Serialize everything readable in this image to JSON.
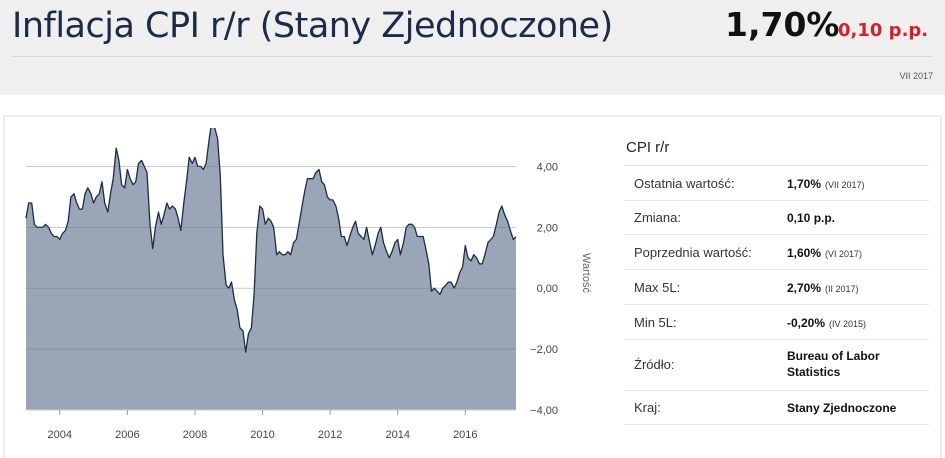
{
  "header": {
    "title": "Inflacja CPI r/r (Stany Zjednoczone)",
    "value": "1,70%",
    "change": "0,10 p.p.",
    "period": "VII 2017",
    "change_color": "#d61f2c",
    "title_color": "#1c2b47"
  },
  "sidebar": {
    "title": "CPI r/r",
    "rows": [
      {
        "label": "Ostatnia wartość:",
        "value": "1,70%",
        "note": "(VII 2017)"
      },
      {
        "label": "Zmiana:",
        "value": "0,10 p.p.",
        "note": ""
      },
      {
        "label": "Poprzednia wartość:",
        "value": "1,60%",
        "note": "(VI 2017)"
      },
      {
        "label": "Max 5L:",
        "value": "2,70%",
        "note": "(II 2017)"
      },
      {
        "label": "Min 5L:",
        "value": "-0,20%",
        "note": "(IV 2015)"
      },
      {
        "label": "Źródło:",
        "value": "Bureau of Labor Statistics",
        "note": ""
      },
      {
        "label": "Kraj:",
        "value": "Stany Zjednoczone",
        "note": ""
      }
    ]
  },
  "chart_data": {
    "type": "area",
    "ylabel": "Wartość",
    "ylim": [
      -4,
      5
    ],
    "xlim": [
      2003.0,
      2017.5
    ],
    "y_ticks": [
      4,
      2,
      0,
      -2,
      -4
    ],
    "y_tick_labels": [
      "4,00",
      "2,00",
      "0,00",
      "−2,00",
      "−4,00"
    ],
    "x_ticks": [
      2004,
      2006,
      2008,
      2010,
      2012,
      2014,
      2016
    ],
    "x_tick_labels": [
      "2004",
      "2006",
      "2008",
      "2010",
      "2012",
      "2014",
      "2016"
    ],
    "grid": true,
    "fill_color": "#9aa6b7",
    "line_color": "#1c2b47",
    "series": [
      {
        "x": [
          2003.0,
          2003.08,
          2003.17,
          2003.25,
          2003.33,
          2003.42,
          2003.5,
          2003.58,
          2003.67,
          2003.75,
          2003.83,
          2003.92,
          2004.0,
          2004.08,
          2004.17,
          2004.25,
          2004.33,
          2004.42,
          2004.5,
          2004.58,
          2004.67,
          2004.75,
          2004.83,
          2004.92,
          2005.0,
          2005.08,
          2005.17,
          2005.25,
          2005.33,
          2005.42,
          2005.5,
          2005.58,
          2005.67,
          2005.75,
          2005.83,
          2005.92,
          2006.0,
          2006.08,
          2006.17,
          2006.25,
          2006.33,
          2006.42,
          2006.5,
          2006.58,
          2006.67,
          2006.75,
          2006.83,
          2006.92,
          2007.0,
          2007.08,
          2007.17,
          2007.25,
          2007.33,
          2007.42,
          2007.5,
          2007.58,
          2007.67,
          2007.75,
          2007.83,
          2007.92,
          2008.0,
          2008.08,
          2008.17,
          2008.25,
          2008.33,
          2008.42,
          2008.5,
          2008.58,
          2008.67,
          2008.75,
          2008.83,
          2008.92,
          2009.0,
          2009.08,
          2009.17,
          2009.25,
          2009.33,
          2009.42,
          2009.5,
          2009.58,
          2009.67,
          2009.75,
          2009.83,
          2009.92,
          2010.0,
          2010.08,
          2010.17,
          2010.25,
          2010.33,
          2010.42,
          2010.5,
          2010.58,
          2010.67,
          2010.75,
          2010.83,
          2010.92,
          2011.0,
          2011.08,
          2011.17,
          2011.25,
          2011.33,
          2011.42,
          2011.5,
          2011.58,
          2011.67,
          2011.75,
          2011.83,
          2011.92,
          2012.0,
          2012.08,
          2012.17,
          2012.25,
          2012.33,
          2012.42,
          2012.5,
          2012.58,
          2012.67,
          2012.75,
          2012.83,
          2012.92,
          2013.0,
          2013.08,
          2013.17,
          2013.25,
          2013.33,
          2013.42,
          2013.5,
          2013.58,
          2013.67,
          2013.75,
          2013.83,
          2013.92,
          2014.0,
          2014.08,
          2014.17,
          2014.25,
          2014.33,
          2014.42,
          2014.5,
          2014.58,
          2014.67,
          2014.75,
          2014.83,
          2014.92,
          2015.0,
          2015.08,
          2015.17,
          2015.25,
          2015.33,
          2015.42,
          2015.5,
          2015.58,
          2015.67,
          2015.75,
          2015.83,
          2015.92,
          2016.0,
          2016.08,
          2016.17,
          2016.25,
          2016.33,
          2016.42,
          2016.5,
          2016.58,
          2016.67,
          2016.75,
          2016.83,
          2016.92,
          2017.0,
          2017.08,
          2017.17,
          2017.25,
          2017.33,
          2017.42,
          2017.5
        ],
        "values": [
          2.3,
          2.8,
          2.8,
          2.1,
          2.0,
          2.0,
          2.0,
          2.1,
          2.0,
          1.8,
          1.7,
          1.7,
          1.6,
          1.8,
          1.9,
          2.2,
          3.0,
          3.1,
          2.8,
          2.6,
          2.6,
          3.1,
          3.3,
          3.1,
          2.8,
          3.0,
          3.1,
          3.5,
          2.8,
          2.5,
          3.1,
          3.6,
          4.6,
          4.2,
          3.4,
          3.3,
          3.9,
          3.6,
          3.4,
          3.5,
          4.1,
          4.2,
          4.0,
          3.8,
          2.1,
          1.3,
          2.0,
          2.5,
          2.1,
          2.4,
          2.8,
          2.6,
          2.7,
          2.6,
          2.3,
          1.9,
          2.8,
          3.5,
          4.3,
          4.1,
          4.3,
          4.0,
          4.0,
          3.9,
          4.1,
          4.9,
          5.5,
          5.3,
          4.9,
          3.7,
          1.1,
          0.1,
          0.0,
          0.2,
          -0.4,
          -0.7,
          -1.3,
          -1.4,
          -2.1,
          -1.5,
          -1.3,
          -0.2,
          1.8,
          2.7,
          2.6,
          2.1,
          2.3,
          2.2,
          2.0,
          1.1,
          1.2,
          1.1,
          1.1,
          1.2,
          1.1,
          1.5,
          1.6,
          2.1,
          2.7,
          3.2,
          3.6,
          3.6,
          3.6,
          3.8,
          3.9,
          3.5,
          3.4,
          3.0,
          2.9,
          2.9,
          2.7,
          2.3,
          1.7,
          1.7,
          1.4,
          1.7,
          2.0,
          2.2,
          1.8,
          1.7,
          1.6,
          2.0,
          1.5,
          1.1,
          1.4,
          1.8,
          2.0,
          1.5,
          1.2,
          1.0,
          1.2,
          1.5,
          1.6,
          1.1,
          1.5,
          2.0,
          2.1,
          2.1,
          2.0,
          1.7,
          1.7,
          1.7,
          1.3,
          0.8,
          -0.1,
          0.0,
          -0.1,
          -0.2,
          0.0,
          0.1,
          0.2,
          0.2,
          0.0,
          0.2,
          0.5,
          0.7,
          1.4,
          1.0,
          0.9,
          1.1,
          1.0,
          0.8,
          0.8,
          1.1,
          1.5,
          1.6,
          1.7,
          2.1,
          2.5,
          2.7,
          2.4,
          2.2,
          1.9,
          1.6,
          1.7
        ]
      }
    ]
  }
}
